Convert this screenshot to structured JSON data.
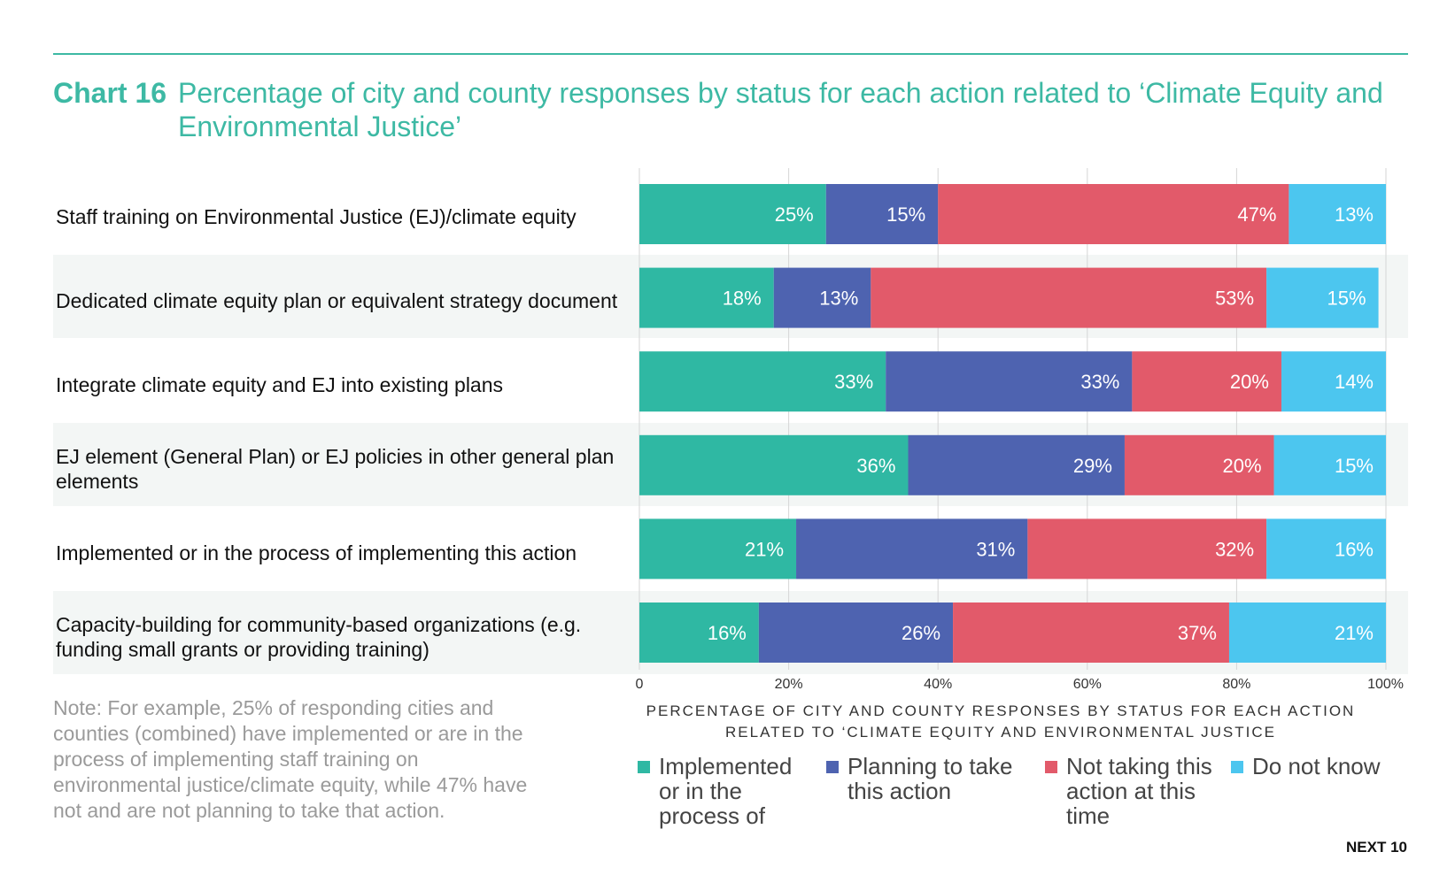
{
  "title": {
    "number": "Chart 16",
    "text": "Percentage of city and county responses by status for each action related to ‘Climate Equity and Environmental Justice’"
  },
  "note": "Note: For example, 25% of responding cities and counties (combined) have implemented or are in the process of implementing staff training on environmental justice/climate equity, while 47% have not and are not planning to take that action.",
  "brand": "NEXT 10",
  "chart_data": {
    "type": "bar",
    "orientation": "horizontal",
    "stacked": true,
    "xlabel": "PERCENTAGE OF CITY AND COUNTY RESPONSES BY STATUS FOR EACH ACTION RELATED TO ‘CLIMATE EQUITY AND ENVIRONMENTAL JUSTICE",
    "xlim": [
      0,
      100
    ],
    "x_ticks": [
      "0",
      "20%",
      "40%",
      "60%",
      "80%",
      "100%"
    ],
    "grid": true,
    "legend_position": "bottom",
    "categories": [
      "Staff training on Environmental Justice (EJ)/climate equity",
      "Dedicated climate equity plan or equivalent strategy document",
      "Integrate climate equity and EJ into existing plans",
      "EJ element (General Plan) or EJ policies in other general plan elements",
      "Implemented or in the process of implementing this action",
      "Capacity-building for community-based organizations (e.g. funding small grants or providing training)"
    ],
    "series": [
      {
        "name": "Implemented or in the process of",
        "color": "#2fb8a3",
        "values": [
          25,
          18,
          33,
          36,
          21,
          16
        ],
        "labels": [
          "25%",
          "18%",
          "33%",
          "36%",
          "21%",
          "16%"
        ]
      },
      {
        "name": "Planning to take this action",
        "color": "#4e63b0",
        "values": [
          15,
          13,
          33,
          29,
          31,
          26
        ],
        "labels": [
          "15%",
          "13%",
          "33%",
          "29%",
          "31%",
          "26%"
        ]
      },
      {
        "name": "Not taking this action at this time",
        "color": "#e25a6a",
        "values": [
          47,
          53,
          20,
          20,
          32,
          37
        ],
        "labels": [
          "47%",
          "53%",
          "20%",
          "20%",
          "32%",
          "37%"
        ]
      },
      {
        "name": "Do not know",
        "color": "#4cc6ef",
        "values": [
          13,
          15,
          14,
          15,
          16,
          21
        ],
        "labels": [
          "13%",
          "15%",
          "14%",
          "15%",
          "16%",
          "21%"
        ]
      }
    ]
  }
}
